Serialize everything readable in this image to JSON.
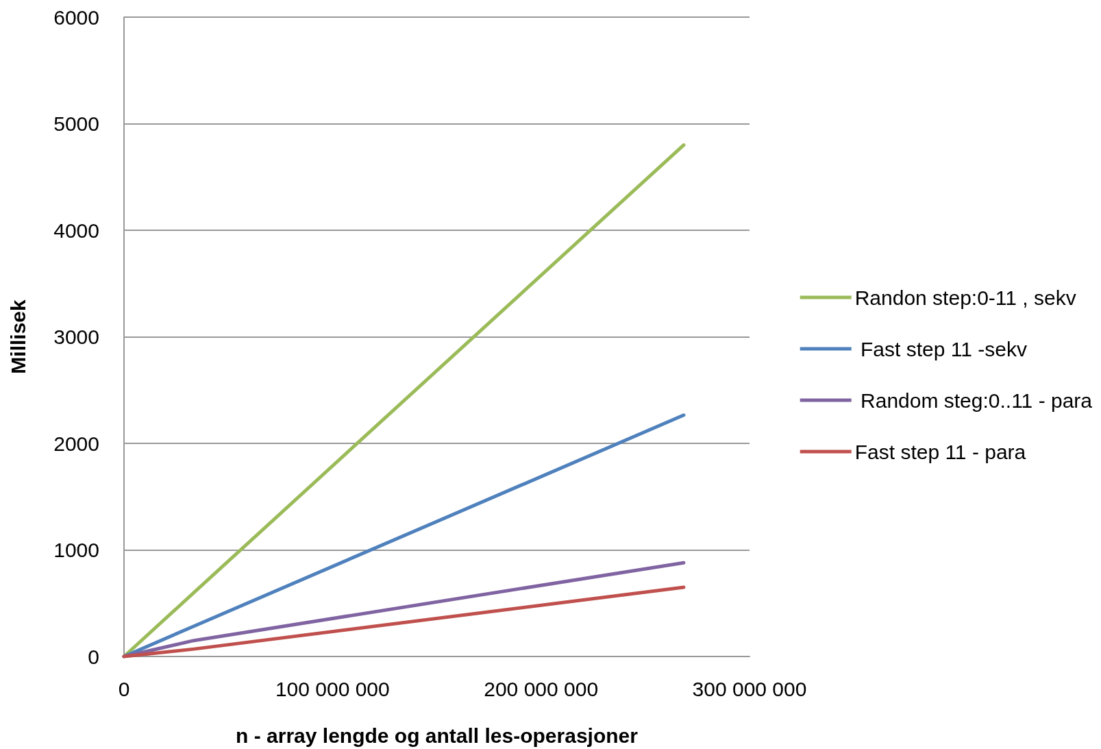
{
  "chart_data": {
    "type": "line",
    "xlabel": "n - array lengde og antall les-operasjoner",
    "ylabel": "Millisek",
    "x": [
      0,
      33554432,
      268435456
    ],
    "series": [
      {
        "name": "Randon step:0-11 , sekv",
        "color": "#9bbb59",
        "values": [
          0,
          600,
          4800
        ]
      },
      {
        "name": " Fast step 11 -sekv",
        "color": "#4f81bd",
        "values": [
          0,
          285,
          2265
        ]
      },
      {
        "name": " Random steg:0..11 - para",
        "color": "#8064a2",
        "values": [
          0,
          150,
          880
        ]
      },
      {
        "name": "Fast step 11 - para",
        "color": "#c0504d",
        "values": [
          0,
          70,
          650
        ]
      }
    ],
    "xlim": [
      0,
      300000000
    ],
    "xticks": [
      {
        "value": 0,
        "label": "0"
      },
      {
        "value": 100000000,
        "label": "100 000 000"
      },
      {
        "value": 200000000,
        "label": "200 000 000"
      },
      {
        "value": 300000000,
        "label": "300 000 000"
      }
    ],
    "ylim": [
      0,
      6000
    ],
    "yticks": [
      0,
      1000,
      2000,
      3000,
      4000,
      5000,
      6000
    ],
    "grid": "y",
    "legend": "right",
    "marker": "none",
    "line_style": "solid"
  }
}
